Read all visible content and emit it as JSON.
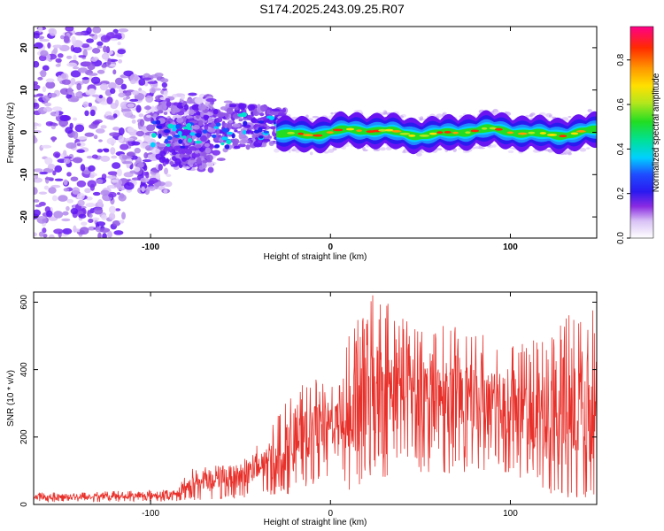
{
  "title": "S174.2025.243.09.25.R07",
  "colors": {
    "snr_line": "#e8302a",
    "frame": "#000000"
  },
  "chart_data": [
    {
      "type": "heatmap",
      "name": "spectrogram",
      "xlabel": "Height of straight line (km)",
      "ylabel": "Frequency (Hz)",
      "xlim": [
        -165,
        148
      ],
      "ylim": [
        -25,
        25
      ],
      "xticks": [
        -100,
        0,
        100
      ],
      "yticks": [
        -20,
        -10,
        0,
        10,
        20
      ],
      "colorbar": {
        "label": "Normalized spectral amplitude",
        "range": [
          0,
          0.95
        ],
        "ticks": [
          0.0,
          0.2,
          0.4,
          0.6,
          0.8
        ],
        "tick_labels": [
          "0.0",
          "0.2",
          "0.4",
          "0.6",
          "0.8"
        ]
      },
      "ridge": {
        "description_points": [
          [
            -100,
            0.5
          ],
          [
            -80,
            0
          ],
          [
            -60,
            -1
          ],
          [
            -40,
            2
          ],
          [
            -30,
            1.5
          ],
          [
            -20,
            0.5
          ],
          [
            0,
            -0.5
          ],
          [
            40,
            0.5
          ],
          [
            80,
            -0.5
          ],
          [
            120,
            0.5
          ],
          [
            148,
            0
          ]
        ]
      }
    },
    {
      "type": "line",
      "name": "snr",
      "xlabel": "Height of straight line (km)",
      "ylabel": "SNR (10 * v/v)",
      "xlim": [
        -165,
        148
      ],
      "ylim": [
        0,
        630
      ],
      "xticks": [
        -100,
        0,
        100
      ],
      "yticks": [
        0,
        200,
        400,
        600
      ],
      "envelope": [
        {
          "x": -165,
          "low": 10,
          "high": 35
        },
        {
          "x": -85,
          "low": 15,
          "high": 45
        },
        {
          "x": -80,
          "low": 20,
          "high": 105
        },
        {
          "x": -60,
          "low": 25,
          "high": 120
        },
        {
          "x": -40,
          "low": 40,
          "high": 180
        },
        {
          "x": -22,
          "low": 50,
          "high": 330
        },
        {
          "x": -10,
          "low": 100,
          "high": 380
        },
        {
          "x": 5,
          "low": 150,
          "high": 380
        },
        {
          "x": 10,
          "low": 50,
          "high": 540
        },
        {
          "x": 25,
          "low": 130,
          "high": 630
        },
        {
          "x": 50,
          "low": 160,
          "high": 550
        },
        {
          "x": 80,
          "low": 150,
          "high": 520
        },
        {
          "x": 110,
          "low": 120,
          "high": 480
        },
        {
          "x": 125,
          "low": 40,
          "high": 530
        },
        {
          "x": 140,
          "low": 30,
          "high": 600
        },
        {
          "x": 148,
          "low": 50,
          "high": 590
        }
      ]
    }
  ]
}
